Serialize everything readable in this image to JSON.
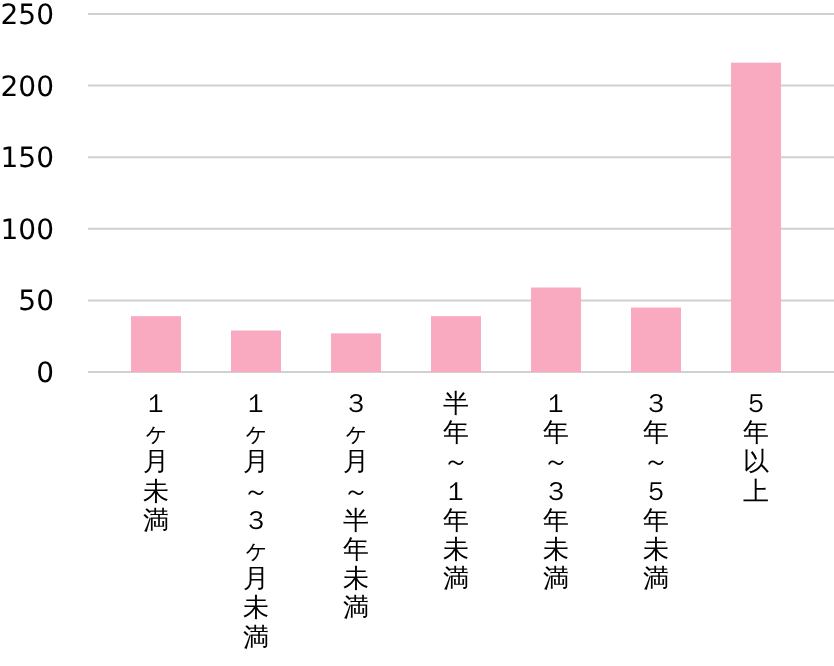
{
  "chart_data": {
    "type": "bar",
    "categories": [
      "１ヶ月未満",
      "１ヶ月～３ヶ月未満",
      "３ヶ月～半年未満",
      "半年～１年未満",
      "１年～３年未満",
      "３年～５年未満",
      "５年以上"
    ],
    "values": [
      39,
      29,
      27,
      39,
      59,
      45,
      216
    ],
    "color": "#f9aac1",
    "ylim": [
      0,
      250
    ],
    "yticks": [
      0,
      50,
      100,
      150,
      200,
      250
    ],
    "grid": "y"
  }
}
